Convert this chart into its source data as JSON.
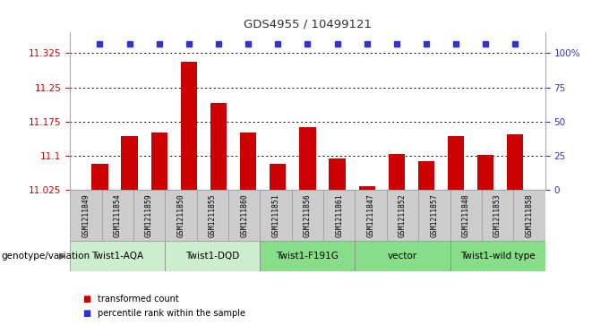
{
  "title": "GDS4955 / 10499121",
  "samples": [
    "GSM1211849",
    "GSM1211854",
    "GSM1211859",
    "GSM1211850",
    "GSM1211855",
    "GSM1211860",
    "GSM1211851",
    "GSM1211856",
    "GSM1211861",
    "GSM1211847",
    "GSM1211852",
    "GSM1211857",
    "GSM1211848",
    "GSM1211853",
    "GSM1211858"
  ],
  "bar_values": [
    11.083,
    11.143,
    11.152,
    11.305,
    11.215,
    11.152,
    11.083,
    11.163,
    11.095,
    11.033,
    11.105,
    11.088,
    11.143,
    11.103,
    11.148
  ],
  "groups": [
    {
      "label": "Twist1-AQA",
      "members": [
        0,
        1,
        2
      ],
      "color": "#cceecc"
    },
    {
      "label": "Twist1-DQD",
      "members": [
        3,
        4,
        5
      ],
      "color": "#cceecc"
    },
    {
      "label": "Twist1-F191G",
      "members": [
        6,
        7,
        8
      ],
      "color": "#88dd88"
    },
    {
      "label": "vector",
      "members": [
        9,
        10,
        11
      ],
      "color": "#88dd88"
    },
    {
      "label": "Twist1-wild type",
      "members": [
        12,
        13,
        14
      ],
      "color": "#88dd88"
    }
  ],
  "ymin": 11.025,
  "ymax": 11.325,
  "yticks": [
    11.025,
    11.1,
    11.175,
    11.25,
    11.325
  ],
  "ytick_labels": [
    "11.025",
    "11.1",
    "11.175",
    "11.25",
    "11.325"
  ],
  "right_yticks": [
    0,
    25,
    50,
    75,
    100
  ],
  "right_ytick_labels": [
    "0",
    "25",
    "50",
    "75",
    "100%"
  ],
  "bar_color": "#cc0000",
  "dot_color": "#3333cc",
  "grid_color": "#000000",
  "tick_label_color_left": "#cc0000",
  "tick_label_color_right": "#3333cc",
  "title_color": "#333333",
  "sample_box_color": "#cccccc",
  "sample_box_edge": "#999999",
  "legend_red_label": "transformed count",
  "legend_blue_label": "percentile rank within the sample",
  "genotype_label": "genotype/variation"
}
